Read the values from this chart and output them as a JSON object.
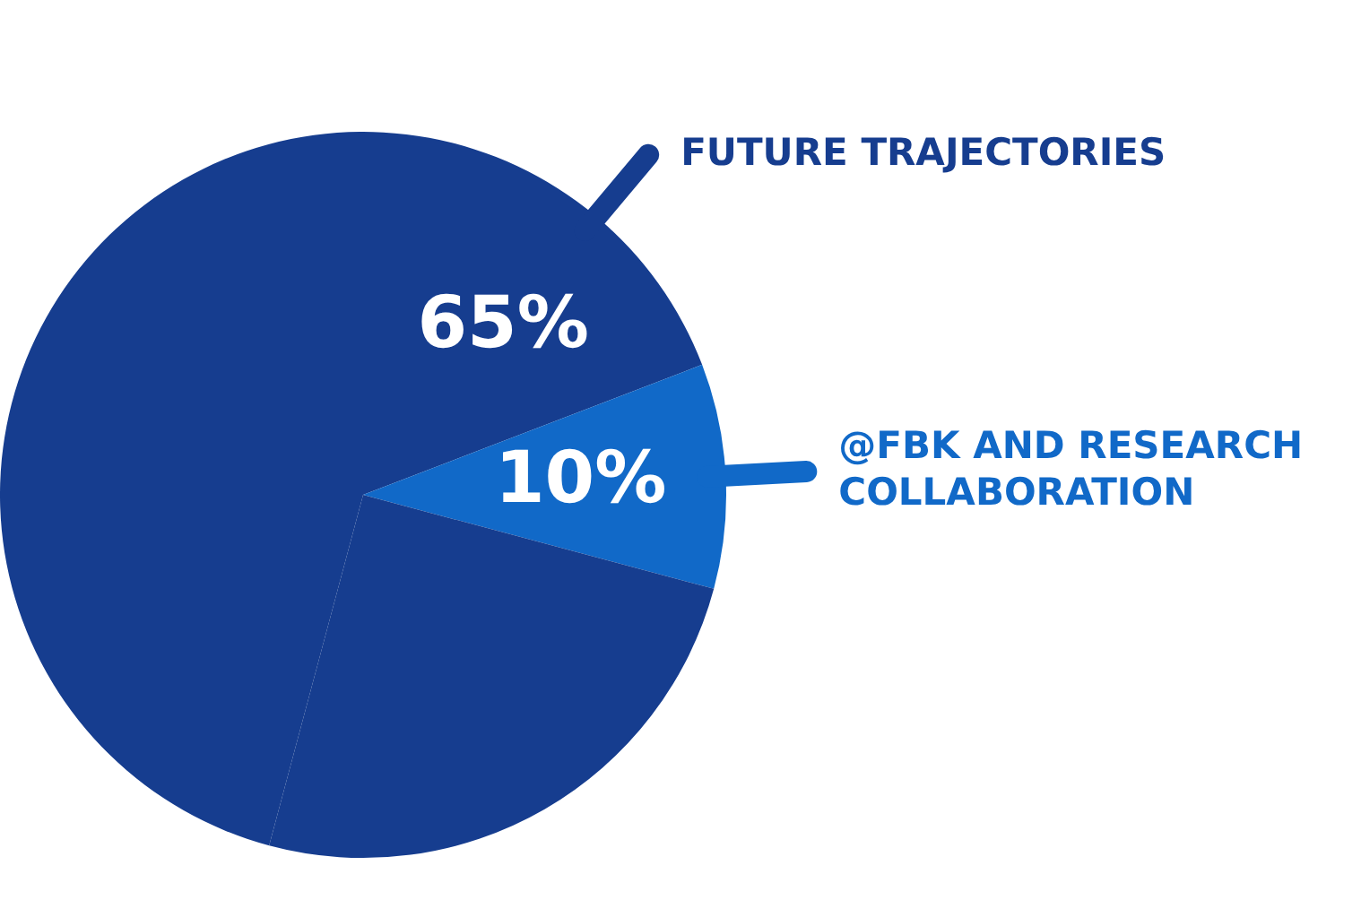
{
  "chart_data": {
    "type": "pie",
    "categories": [
      "FUTURE TRAJECTORIES",
      "@FBK AND RESEARCH COLLABORATION",
      null
    ],
    "values": [
      65,
      10,
      25
    ],
    "value_labels": [
      "65%",
      "10%",
      null
    ],
    "colors": [
      "#163d8f",
      "#1169c8",
      "#163d8f"
    ]
  }
}
